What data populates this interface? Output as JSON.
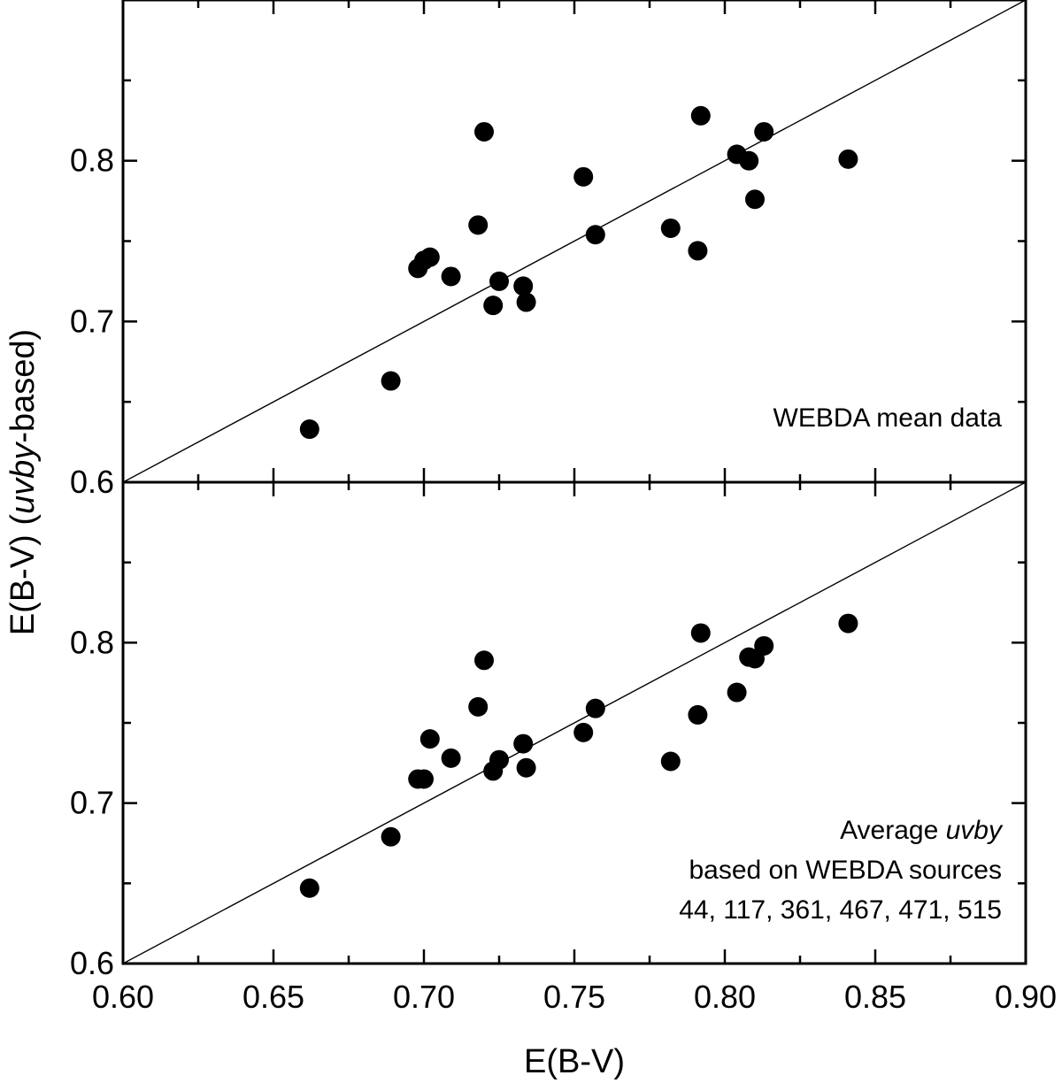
{
  "chart_data": {
    "type": "scatter",
    "xlabel": "E(B-V)",
    "ylabel_parts": [
      "E(B-V) (",
      "uvby",
      "-based)"
    ],
    "x_ticks": [
      "0.60",
      "0.65",
      "0.70",
      "0.75",
      "0.80",
      "0.85",
      "0.90"
    ],
    "y_ticks": [
      "0.6",
      "0.7",
      "0.8"
    ],
    "xlim": [
      0.6,
      0.9
    ],
    "panels": [
      {
        "name": "top",
        "ylim": [
          0.6,
          0.9
        ],
        "annotation": [
          "WEBDA mean data"
        ],
        "reference_line": [
          [
            0.6,
            0.6
          ],
          [
            0.9,
            0.9
          ]
        ],
        "points": [
          [
            0.662,
            0.633
          ],
          [
            0.689,
            0.663
          ],
          [
            0.698,
            0.733
          ],
          [
            0.7,
            0.738
          ],
          [
            0.702,
            0.74
          ],
          [
            0.709,
            0.728
          ],
          [
            0.718,
            0.76
          ],
          [
            0.72,
            0.818
          ],
          [
            0.723,
            0.71
          ],
          [
            0.725,
            0.725
          ],
          [
            0.733,
            0.722
          ],
          [
            0.734,
            0.712
          ],
          [
            0.753,
            0.79
          ],
          [
            0.757,
            0.754
          ],
          [
            0.782,
            0.758
          ],
          [
            0.791,
            0.744
          ],
          [
            0.792,
            0.828
          ],
          [
            0.804,
            0.804
          ],
          [
            0.808,
            0.8
          ],
          [
            0.81,
            0.776
          ],
          [
            0.813,
            0.818
          ],
          [
            0.841,
            0.801
          ]
        ]
      },
      {
        "name": "bottom",
        "ylim": [
          0.6,
          0.9
        ],
        "annotation_line1_parts": [
          "Average ",
          "uvby"
        ],
        "annotation": [
          "based on WEBDA sources",
          "44, 117, 361, 467, 471, 515"
        ],
        "reference_line": [
          [
            0.6,
            0.6
          ],
          [
            0.9,
            0.9
          ]
        ],
        "points": [
          [
            0.662,
            0.647
          ],
          [
            0.689,
            0.679
          ],
          [
            0.698,
            0.715
          ],
          [
            0.7,
            0.715
          ],
          [
            0.702,
            0.74
          ],
          [
            0.709,
            0.728
          ],
          [
            0.718,
            0.76
          ],
          [
            0.72,
            0.789
          ],
          [
            0.723,
            0.72
          ],
          [
            0.725,
            0.727
          ],
          [
            0.733,
            0.737
          ],
          [
            0.734,
            0.722
          ],
          [
            0.753,
            0.744
          ],
          [
            0.757,
            0.759
          ],
          [
            0.782,
            0.726
          ],
          [
            0.791,
            0.755
          ],
          [
            0.792,
            0.806
          ],
          [
            0.804,
            0.769
          ],
          [
            0.808,
            0.791
          ],
          [
            0.81,
            0.79
          ],
          [
            0.813,
            0.798
          ],
          [
            0.841,
            0.812
          ]
        ]
      }
    ]
  }
}
